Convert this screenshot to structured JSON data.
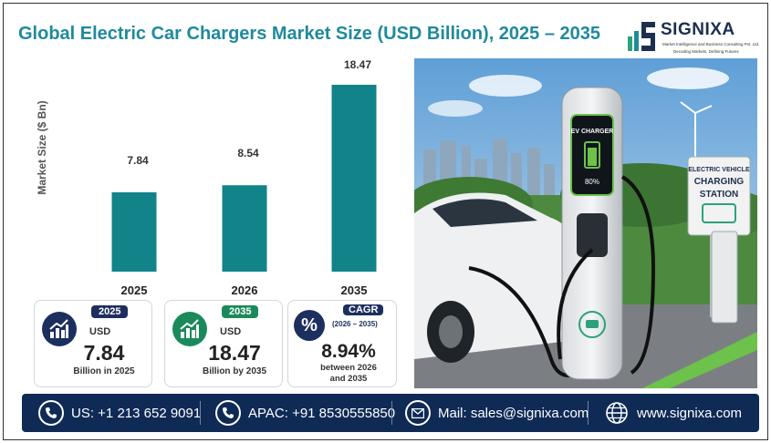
{
  "title": "Global Electric Car Chargers Market Size (USD Billion), 2025 – 2035",
  "logo": {
    "name": "SIGNIXA",
    "tagline": "Market Intelligence and Business Consulting Pvt. Ltd.",
    "slogan": "Decoding Markets, Defining Futures"
  },
  "chart_data": {
    "type": "bar",
    "categories": [
      "2025",
      "2026",
      "2035"
    ],
    "values": [
      7.84,
      8.54,
      18.47
    ],
    "value_labels": [
      "7.84",
      "8.54",
      "18.47"
    ],
    "title": "Global Electric Car Chargers Market Size (USD Billion), 2025 – 2035",
    "xlabel": "",
    "ylabel": "Market Size ($ Bn)",
    "ylim": [
      0,
      18.47
    ],
    "grid": false,
    "bar_color": "#118389"
  },
  "cards": [
    {
      "pill": "2025",
      "currency": "USD",
      "value": "7.84",
      "caption": "Billion in 2025",
      "accent": "#1d2f5e"
    },
    {
      "pill": "2035",
      "currency": "USD",
      "value": "18.47",
      "caption": "Billion by 2035",
      "accent": "#1b8a5a"
    },
    {
      "pill": "CAGR",
      "pill2": "(2026 – 2035)",
      "value": "8.94%",
      "caption1": "between 2026",
      "caption2": "and 2035",
      "accent": "#1d2f5e",
      "icon": "percent-icon"
    }
  ],
  "photo": {
    "charger_screen_title": "EV CHARGER",
    "charge_level": "80%",
    "sign_line1": "ELECTRIC VEHICLE",
    "sign_line2": "CHARGING",
    "sign_line3": "STATION"
  },
  "footer": {
    "us": "US: +1 213 652 9091",
    "apac": "APAC: +91 8530555850",
    "mail": "Mail: sales@signixa.com",
    "web": "www.signixa.com"
  }
}
